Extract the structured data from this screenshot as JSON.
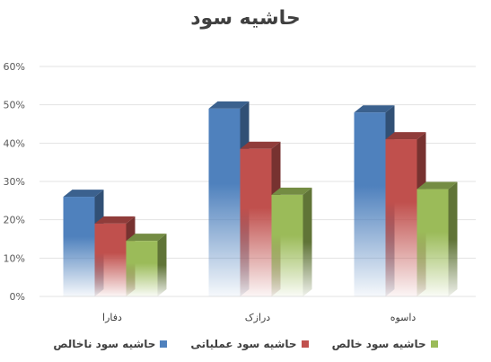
{
  "chart_data": {
    "type": "bar",
    "title": "حاشیه سود",
    "xlabel": "",
    "ylabel": "",
    "categories": [
      "دفارا",
      "درازک",
      "داسوه"
    ],
    "series": [
      {
        "name": "حاشیه سود ناخالص",
        "values": [
          0.26,
          0.49,
          0.48
        ],
        "color": "#4F81BD"
      },
      {
        "name": "حاشیه سود عملیاتی",
        "values": [
          0.19,
          0.385,
          0.41
        ],
        "color": "#C0504D"
      },
      {
        "name": "حاشیه سود خالص",
        "values": [
          0.145,
          0.265,
          0.28
        ],
        "color": "#9BBB59"
      }
    ],
    "ylim": [
      0,
      0.6
    ],
    "yticks": [
      0,
      0.1,
      0.2,
      0.3,
      0.4,
      0.5,
      0.6
    ],
    "ytick_labels": [
      "0%",
      "10%",
      "20%",
      "30%",
      "40%",
      "50%",
      "60%"
    ],
    "grid": true,
    "legend_position": "bottom",
    "style": "3d-gradient-columns"
  }
}
